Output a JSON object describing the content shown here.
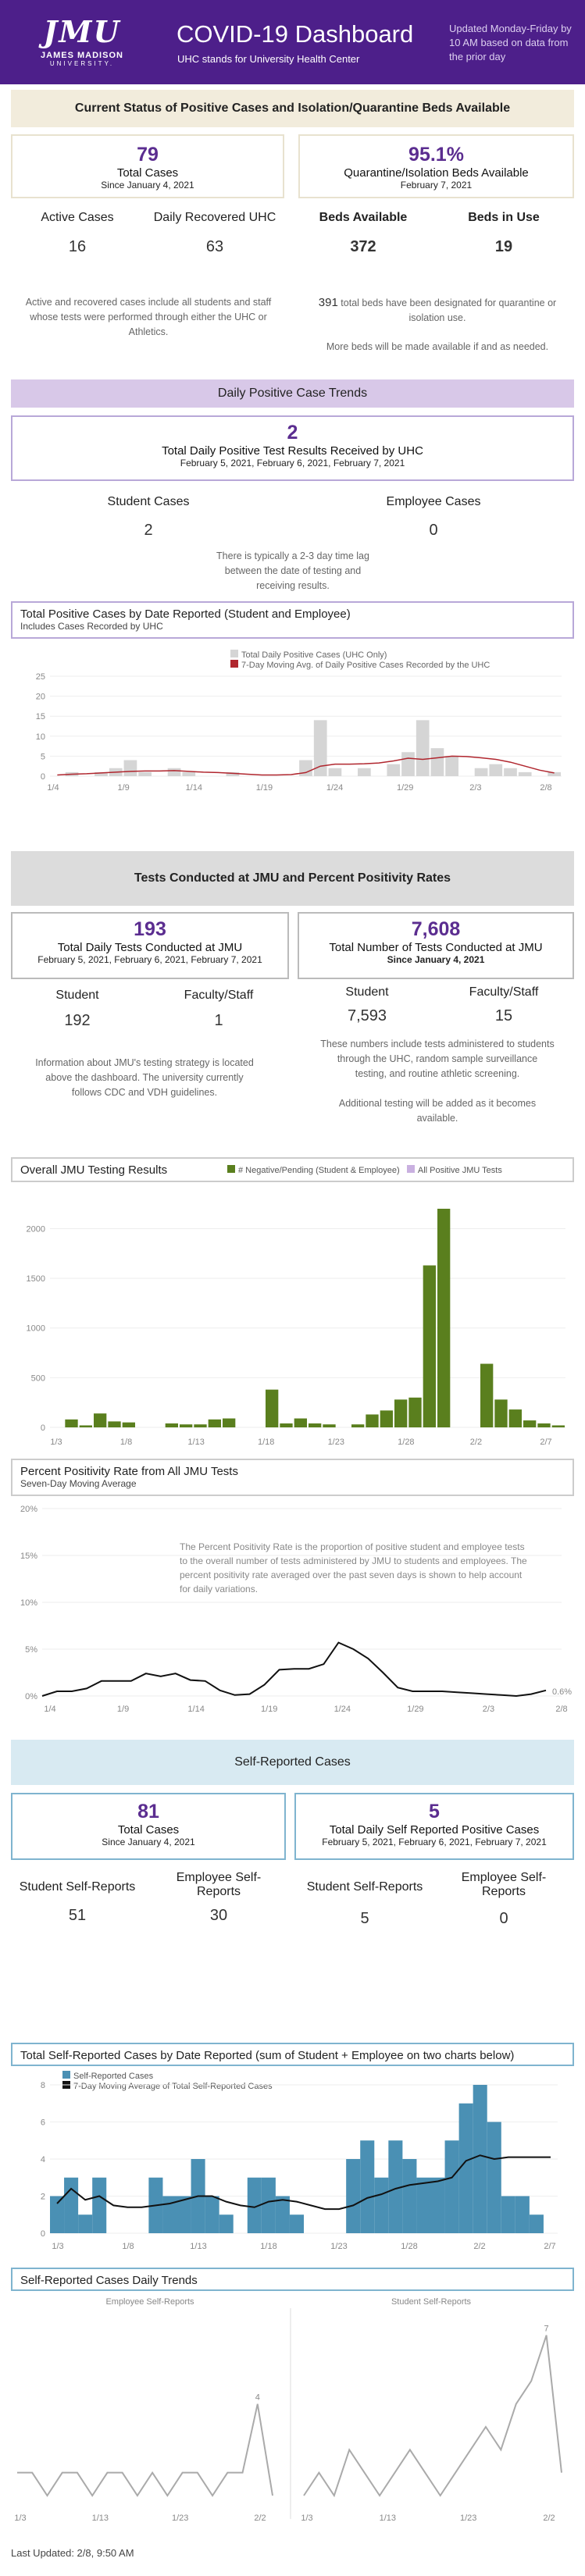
{
  "header": {
    "logo": "JMU",
    "logo_line1": "JAMES MADISON",
    "logo_line2": "UNIVERSITY.",
    "title": "COVID-19 Dashboard",
    "subtitle": "UHC stands for University Health Center",
    "updated": "Updated Monday-Friday by 10 AM based on data from the prior day"
  },
  "status": {
    "band": "Current Status of Positive Cases and Isolation/Quarantine Beds Available",
    "total_cases": "79",
    "total_cases_label": "Total Cases",
    "total_cases_since": "Since January 4, 2021",
    "beds_pct": "95.1%",
    "beds_pct_label": "Quarantine/Isolation Beds Available",
    "beds_pct_date": "February 7, 2021",
    "active_label": "Active Cases",
    "active": "16",
    "recovered_label": "Daily Recovered UHC",
    "recovered": "63",
    "beds_avail_label": "Beds Available",
    "beds_avail": "372",
    "beds_use_label": "Beds in Use",
    "beds_use": "19",
    "note_left": "Active and recovered cases include all students and staff whose tests were performed through either the UHC or Athletics.",
    "note_right_num": "391",
    "note_right": "total beds have been designated for quarantine or isolation use.",
    "note_right2": "More beds will be made available if and as needed."
  },
  "daily": {
    "band": "Daily Positive Case Trends",
    "num": "2",
    "label": "Total Daily Positive Test Results Received by UHC",
    "dates": "February 5, 2021, February 6, 2021, February 7, 2021",
    "student_label": "Student Cases",
    "student": "2",
    "employee_label": "Employee Cases",
    "employee": "0",
    "note": "There is typically a 2-3 day time lag between the date of testing and receiving results."
  },
  "chart1": {
    "title": "Total Positive Cases by Date Reported (Student and Employee)",
    "subtitle": "Includes Cases Recorded by UHC",
    "legend_bar": "Total Daily Positive Cases (UHC Only)",
    "legend_line": "7-Day Moving Avg. of Daily Positive Cases Recorded by the UHC",
    "yticks": [
      "25",
      "20",
      "15",
      "10",
      "5",
      "0"
    ],
    "xticks": [
      "1/4",
      "1/9",
      "1/14",
      "1/19",
      "1/24",
      "1/29",
      "2/3",
      "2/8"
    ]
  },
  "tests": {
    "band": "Tests Conducted at JMU and Percent Positivity Rates",
    "daily_num": "193",
    "daily_label": "Total Daily Tests Conducted at JMU",
    "daily_dates": "February 5, 2021, February 6, 2021, February 7, 2021",
    "student_label": "Student",
    "student": "192",
    "faculty_label": "Faculty/Staff",
    "faculty": "1",
    "total_num": "7,608",
    "total_label": "Total Number of Tests Conducted at JMU",
    "total_since": "Since January 4, 2021",
    "t_student_label": "Student",
    "t_student": "7,593",
    "t_faculty_label": "Faculty/Staff",
    "t_faculty": "15",
    "note_left": "Information about JMU's testing strategy is located above the dashboard. The university currently follows CDC and VDH guidelines.",
    "note_right": "These numbers include tests administered to students through the UHC, random sample surveillance testing, and routine athletic screening.",
    "note_right2": "Additional testing will be added as it becomes available."
  },
  "chart2": {
    "title": "Overall JMU Testing Results",
    "legend_neg": "# Negative/Pending (Student & Employee)",
    "legend_pos": "All Positive JMU Tests",
    "yticks": [
      "2000",
      "1500",
      "1000",
      "500",
      "0"
    ],
    "xticks": [
      "1/3",
      "1/8",
      "1/13",
      "1/18",
      "1/23",
      "1/28",
      "2/2",
      "2/7"
    ]
  },
  "chart3": {
    "title": "Percent Positivity Rate from All JMU Tests",
    "subtitle": "Seven-Day Moving Average",
    "text": "The Percent Positivity Rate is the proportion of positive student and employee tests to the overall number of tests administered by JMU to students and employees.  The percent positivity rate averaged over the past seven days is shown to help account for daily variations.",
    "yticks": [
      "20%",
      "15%",
      "10%",
      "5%",
      "0%"
    ],
    "xticks": [
      "1/4",
      "1/9",
      "1/14",
      "1/19",
      "1/24",
      "1/29",
      "2/3",
      "2/8"
    ],
    "end_label": "0.6%"
  },
  "self": {
    "band": "Self-Reported Cases",
    "total": "81",
    "total_label": "Total Cases",
    "total_since": "Since January 4, 2021",
    "daily": "5",
    "daily_label": "Total Daily Self Reported Positive Cases",
    "daily_dates": "February 5, 2021, February 6, 2021, February 7, 2021",
    "s_label": "Student Self-Reports",
    "s": "51",
    "e_label": "Employee Self-Reports",
    "e": "30",
    "ds_label": "Student Self-Reports",
    "ds": "5",
    "de_label": "Employee Self-Reports",
    "de": "0"
  },
  "chart4": {
    "title": "Total Self-Reported Cases by Date Reported (sum of Student + Employee on two charts below)",
    "legend_bar": "Self-Reported Cases",
    "legend_line": "7-Day Moving Average of Total Self-Reported Cases",
    "yticks": [
      "8",
      "6",
      "4",
      "2",
      "0"
    ],
    "xticks": [
      "1/3",
      "1/8",
      "1/13",
      "1/18",
      "1/23",
      "1/28",
      "2/2",
      "2/7"
    ]
  },
  "chart5": {
    "title": "Self-Reported Cases Daily Trends",
    "left": "Employee Self-Reports",
    "right": "Student Self-Reports",
    "peak_left": "4",
    "peak_right": "7",
    "xticks_left": [
      "1/3",
      "1/13",
      "1/23",
      "2/2"
    ],
    "xticks_right": [
      "1/3",
      "1/13",
      "1/23",
      "2/2"
    ]
  },
  "footer": "Last Updated: 2/8, 9:50 AM",
  "chart_data": [
    {
      "type": "bar",
      "name": "chart1",
      "categories": [
        "1/4",
        "1/5",
        "1/6",
        "1/7",
        "1/8",
        "1/9",
        "1/10",
        "1/11",
        "1/12",
        "1/13",
        "1/14",
        "1/15",
        "1/16",
        "1/17",
        "1/18",
        "1/19",
        "1/20",
        "1/21",
        "1/22",
        "1/23",
        "1/24",
        "1/25",
        "1/26",
        "1/27",
        "1/28",
        "1/29",
        "1/30",
        "1/31",
        "2/1",
        "2/2",
        "2/3",
        "2/4",
        "2/5",
        "2/6",
        "2/7"
      ],
      "series": [
        {
          "name": "Total Daily Positive Cases (UHC Only)",
          "values": [
            0,
            1,
            0,
            1,
            2,
            4,
            1,
            0,
            2,
            1,
            0,
            0,
            1,
            0,
            0,
            0,
            0,
            4,
            14,
            2,
            0,
            2,
            0,
            3,
            6,
            14,
            7,
            5,
            0,
            2,
            3,
            2,
            1,
            0,
            1
          ]
        },
        {
          "name": "7-Day Moving Avg. of Daily Positive Cases Recorded by the UHC",
          "values": [
            0.3,
            0.5,
            0.6,
            0.8,
            1,
            1.2,
            1.3,
            1.3,
            1.4,
            1.2,
            1,
            0.9,
            0.7,
            0.5,
            0.3,
            0.3,
            0.4,
            0.9,
            2.5,
            3,
            3,
            3.1,
            3.3,
            3.8,
            4.5,
            4.2,
            4.6,
            5,
            4.9,
            4.6,
            4.2,
            3.5,
            2.5,
            1.5,
            0.8
          ]
        }
      ],
      "ylim": [
        0,
        25
      ]
    },
    {
      "type": "bar",
      "name": "chart2",
      "categories": [
        "1/3",
        "1/4",
        "1/5",
        "1/6",
        "1/7",
        "1/8",
        "1/9",
        "1/10",
        "1/11",
        "1/12",
        "1/13",
        "1/14",
        "1/15",
        "1/16",
        "1/17",
        "1/18",
        "1/19",
        "1/20",
        "1/21",
        "1/22",
        "1/23",
        "1/24",
        "1/25",
        "1/26",
        "1/27",
        "1/28",
        "1/29",
        "1/30",
        "1/31",
        "2/1",
        "2/2",
        "2/3",
        "2/4",
        "2/5",
        "2/6",
        "2/7"
      ],
      "series": [
        {
          "name": "# Negative/Pending (Student & Employee)",
          "values": [
            0,
            80,
            20,
            140,
            60,
            50,
            0,
            0,
            40,
            30,
            30,
            80,
            90,
            0,
            0,
            380,
            40,
            90,
            40,
            30,
            0,
            30,
            130,
            170,
            280,
            300,
            1630,
            2200,
            0,
            0,
            640,
            280,
            180,
            70,
            40,
            20
          ]
        }
      ],
      "ylim": [
        0,
        2200
      ]
    },
    {
      "type": "line",
      "name": "chart3",
      "x": [
        "1/4",
        "1/5",
        "1/6",
        "1/7",
        "1/8",
        "1/9",
        "1/10",
        "1/11",
        "1/12",
        "1/13",
        "1/14",
        "1/15",
        "1/16",
        "1/17",
        "1/18",
        "1/19",
        "1/20",
        "1/21",
        "1/22",
        "1/23",
        "1/24",
        "1/25",
        "1/26",
        "1/27",
        "1/28",
        "1/29",
        "1/30",
        "1/31",
        "2/1",
        "2/2",
        "2/3",
        "2/4",
        "2/5",
        "2/6",
        "2/7"
      ],
      "series": [
        {
          "name": "Seven-Day Moving Average",
          "values": [
            0,
            0.5,
            0.5,
            0.8,
            1.6,
            1.6,
            1.6,
            2.4,
            2.1,
            2.4,
            1.7,
            1.6,
            0.6,
            0.1,
            0.2,
            1.2,
            2.8,
            2.9,
            2.9,
            3.4,
            5.7,
            5,
            4,
            2.5,
            0.9,
            0.5,
            0.5,
            0.5,
            0.4,
            0.3,
            0.2,
            0.1,
            0,
            0.2,
            0.6
          ]
        }
      ],
      "ylim": [
        0,
        20
      ]
    },
    {
      "type": "bar",
      "name": "chart4",
      "categories": [
        "1/3",
        "1/4",
        "1/5",
        "1/6",
        "1/7",
        "1/8",
        "1/9",
        "1/10",
        "1/11",
        "1/12",
        "1/13",
        "1/14",
        "1/15",
        "1/16",
        "1/17",
        "1/18",
        "1/19",
        "1/20",
        "1/21",
        "1/22",
        "1/23",
        "1/24",
        "1/25",
        "1/26",
        "1/27",
        "1/28",
        "1/29",
        "1/30",
        "1/31",
        "2/1",
        "2/2",
        "2/3",
        "2/4",
        "2/5",
        "2/6",
        "2/7"
      ],
      "series": [
        {
          "name": "Self-Reported Cases",
          "values": [
            2,
            3,
            1,
            3,
            0,
            0,
            0,
            3,
            2,
            2,
            4,
            2,
            1,
            0,
            3,
            3,
            2,
            1,
            0,
            0,
            0,
            4,
            5,
            3,
            5,
            4,
            3,
            3,
            5,
            7,
            8,
            6,
            2,
            2,
            1,
            0
          ]
        },
        {
          "name": "7-Day Moving Average of Total Self-Reported Cases",
          "values": [
            1.6,
            2.4,
            1.8,
            2,
            1.5,
            1.4,
            1.4,
            1.5,
            1.6,
            1.8,
            2,
            2,
            1.7,
            1.5,
            1.4,
            1.7,
            1.8,
            1.7,
            1.5,
            1.3,
            1.3,
            1.5,
            1.9,
            2.1,
            2.4,
            2.6,
            2.7,
            2.8,
            3,
            3.9,
            4.2,
            4,
            4.1,
            4.1,
            4.1,
            4.1
          ]
        }
      ],
      "ylim": [
        0,
        8
      ]
    },
    {
      "type": "line",
      "name": "chart5-employee",
      "x": [
        "1/3",
        "1/5",
        "1/7",
        "1/9",
        "1/11",
        "1/13",
        "1/15",
        "1/17",
        "1/19",
        "1/21",
        "1/23",
        "1/25",
        "1/27",
        "1/29",
        "1/31",
        "2/2",
        "2/4",
        "2/6"
      ],
      "series": [
        {
          "name": "Employee Self-Reports",
          "values": [
            1,
            1,
            0,
            1,
            1,
            0,
            1,
            1,
            0,
            1,
            0,
            1,
            1,
            0,
            1,
            1,
            4,
            0
          ]
        }
      ]
    },
    {
      "type": "line",
      "name": "chart5-student",
      "x": [
        "1/3",
        "1/5",
        "1/7",
        "1/9",
        "1/11",
        "1/13",
        "1/15",
        "1/17",
        "1/19",
        "1/21",
        "1/23",
        "1/25",
        "1/27",
        "1/29",
        "1/31",
        "2/2",
        "2/4",
        "2/6"
      ],
      "series": [
        {
          "name": "Student Self-Reports",
          "values": [
            0,
            1,
            0,
            2,
            1,
            0,
            1,
            2,
            1,
            0,
            1,
            2,
            3,
            2,
            4,
            5,
            7,
            1
          ]
        }
      ]
    }
  ]
}
